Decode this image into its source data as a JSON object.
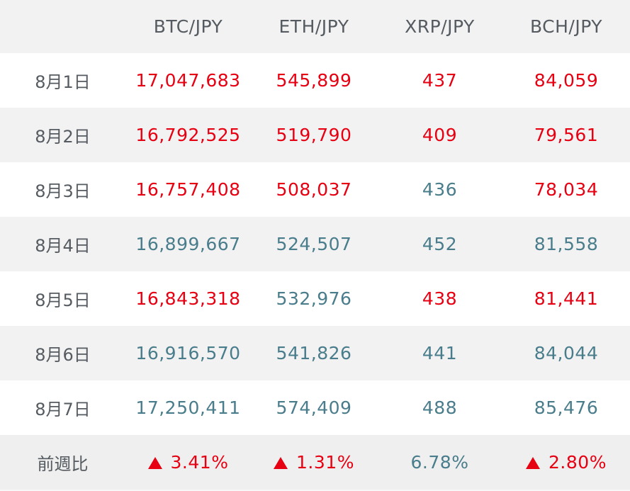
{
  "table": {
    "headers": [
      "",
      "BTC/JPY",
      "ETH/JPY",
      "XRP/JPY",
      "BCH/JPY"
    ],
    "rows": [
      {
        "date": "8月1日",
        "values": [
          "17,047,683",
          "545,899",
          "437",
          "84,059"
        ]
      },
      {
        "date": "8月2日",
        "values": [
          "16,792,525",
          "519,790",
          "409",
          "79,561"
        ]
      },
      {
        "date": "8月3日",
        "values": [
          "16,757,408",
          "508,037",
          "436",
          "78,034"
        ]
      },
      {
        "date": "8月4日",
        "values": [
          "16,899,667",
          "524,507",
          "452",
          "81,558"
        ]
      },
      {
        "date": "8月5日",
        "values": [
          "16,843,318",
          "532,976",
          "438",
          "81,441"
        ]
      },
      {
        "date": "8月6日",
        "values": [
          "16,916,570",
          "541,826",
          "441",
          "84,044"
        ]
      },
      {
        "date": "8月7日",
        "values": [
          "17,250,411",
          "574,409",
          "488",
          "85,476"
        ]
      }
    ],
    "summary": {
      "label": "前週比",
      "values": [
        "3.41%",
        "1.31%",
        "6.78%",
        "2.80%"
      ]
    }
  },
  "colors": {
    "up": "#e60012",
    "down": "#4a7d8c",
    "label": "#555b60",
    "row_shade": "#f2f2f2"
  },
  "icons": {
    "summary_marker": "red-up-triangle-icon"
  }
}
